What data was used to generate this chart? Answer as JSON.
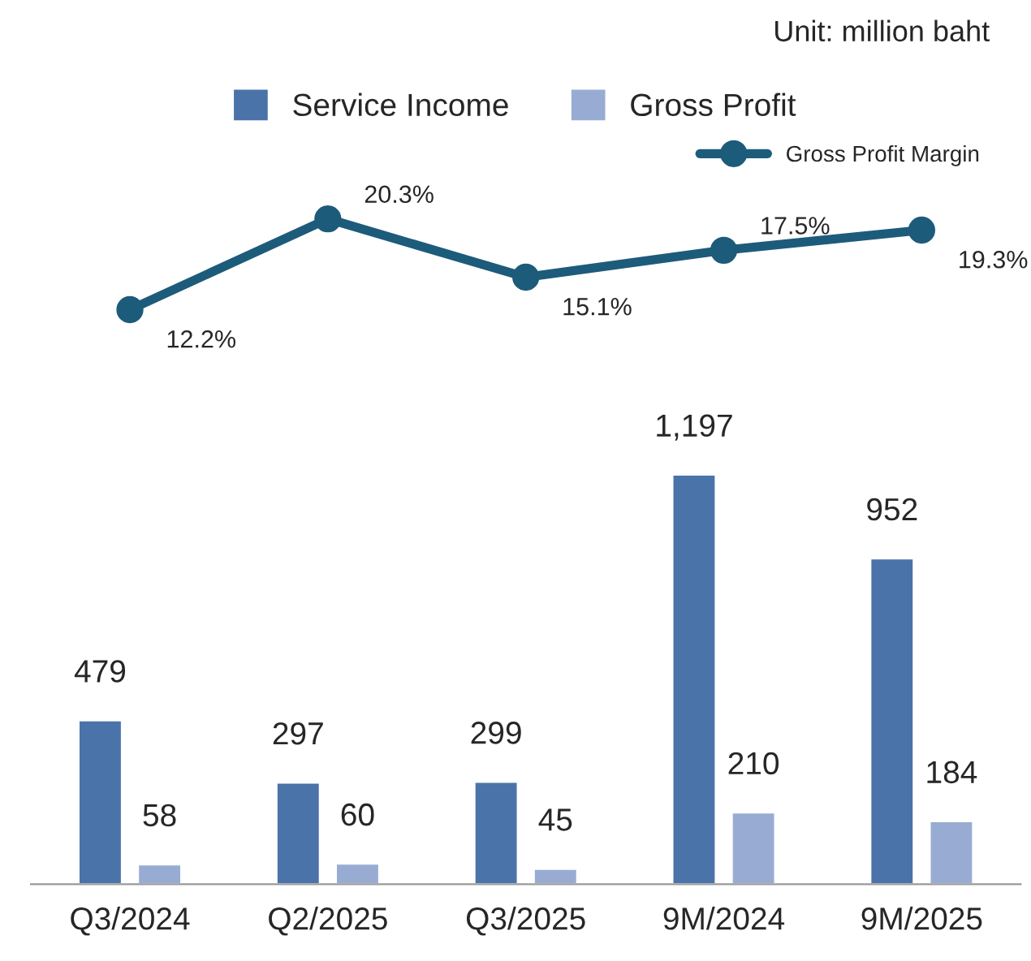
{
  "chart_data": [
    {
      "type": "line",
      "categories": [
        null,
        null,
        null,
        null,
        null
      ],
      "tick_labels": false,
      "legend": "top right",
      "marker": "circle",
      "data_labels": true,
      "series": [
        {
          "name": "Gross Profit Margin",
          "color": "#1d5b7b",
          "values": [
            12.2,
            20.3,
            15.1,
            17.5,
            19.3
          ],
          "value_labels": [
            "12.2%",
            "20.3%",
            "15.1%",
            "17.5%",
            "19.3%"
          ]
        }
      ]
    },
    {
      "type": "bar",
      "categories": [
        "Q3/2024",
        "Q2/2025",
        "Q3/2025",
        "9M/2024",
        "9M/2025"
      ],
      "tick_labels": "x",
      "legend": "top",
      "data_labels": true,
      "series": [
        {
          "name": "Service Income",
          "color": "#4a73a9",
          "values": [
            479,
            297,
            299,
            1197,
            952
          ],
          "value_labels": [
            "479",
            "297",
            "299",
            "1,197",
            "952"
          ]
        },
        {
          "name": "Gross Profit",
          "color": "#98acd3",
          "values": [
            58,
            60,
            45,
            210,
            184
          ]
        }
      ],
      "annotations": [
        "Unit: million baht"
      ]
    }
  ]
}
